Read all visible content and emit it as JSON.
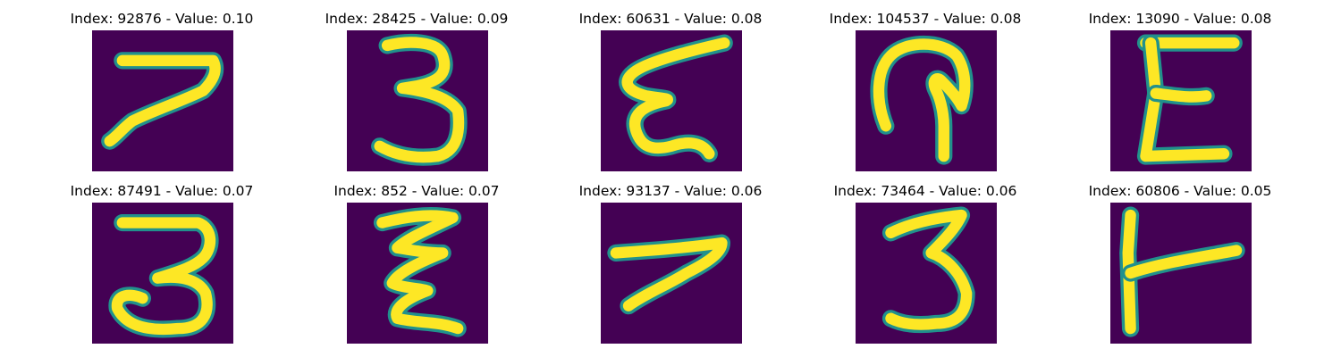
{
  "figure": {
    "panels": [
      {
        "title": "Index: 92876 - Value: 0.10"
      },
      {
        "title": "Index: 28425 - Value: 0.09"
      },
      {
        "title": "Index: 60631 - Value: 0.08"
      },
      {
        "title": "Index: 104537 - Value: 0.08"
      },
      {
        "title": "Index: 13090 - Value: 0.08"
      },
      {
        "title": "Index: 87491 - Value: 0.07"
      },
      {
        "title": "Index: 852 - Value: 0.07"
      },
      {
        "title": "Index: 93137 - Value: 0.06"
      },
      {
        "title": "Index: 73464 - Value: 0.06"
      },
      {
        "title": "Index: 60806 - Value: 0.05"
      }
    ],
    "colors": {
      "background": "#440154",
      "edge": "#21918c",
      "stroke": "#fde725"
    }
  }
}
